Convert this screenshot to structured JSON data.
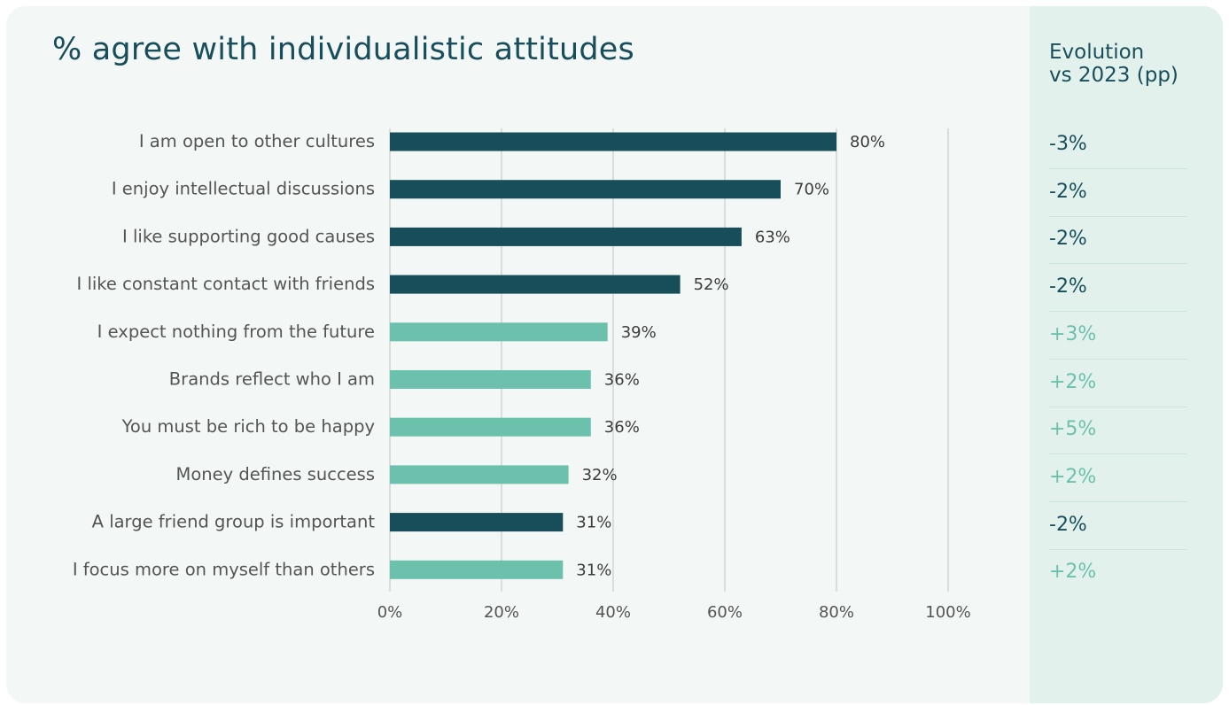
{
  "title": "% agree with individualistic attitudes",
  "evolution_header": {
    "line1": "Evolution",
    "line2": "vs 2023 (pp)"
  },
  "colors": {
    "dark": "#174e5a",
    "light": "#6cc1ac",
    "label": "#545454",
    "grid": "#d9dddc",
    "title": "#184e5c"
  },
  "chart_data": {
    "type": "bar",
    "orientation": "horizontal",
    "categories": [
      "I am open to other cultures",
      "I enjoy intellectual discussions",
      "I like supporting good causes",
      "I like constant contact with friends",
      "I expect nothing from the future",
      "Brands reflect who I am",
      "You must be rich to be happy",
      "Money defines success",
      "A large friend group is important",
      "I focus more on myself than others"
    ],
    "values": [
      80,
      70,
      63,
      52,
      39,
      36,
      36,
      32,
      31,
      31
    ],
    "data_labels": [
      "80%",
      "70%",
      "63%",
      "52%",
      "39%",
      "36%",
      "36%",
      "32%",
      "31%",
      "31%"
    ],
    "bar_colors": [
      "dark",
      "dark",
      "dark",
      "dark",
      "light",
      "light",
      "light",
      "light",
      "dark",
      "light"
    ],
    "xlim": [
      0,
      100
    ],
    "xticks": [
      "0%",
      "20%",
      "40%",
      "60%",
      "80%",
      "100%"
    ],
    "xtick_values": [
      0,
      20,
      40,
      60,
      80,
      100
    ],
    "grid": true,
    "evolution_vs_2023": [
      "-3%",
      "-2%",
      "-2%",
      "-2%",
      "+3%",
      "+2%",
      "+5%",
      "+2%",
      "-2%",
      "+2%"
    ]
  }
}
